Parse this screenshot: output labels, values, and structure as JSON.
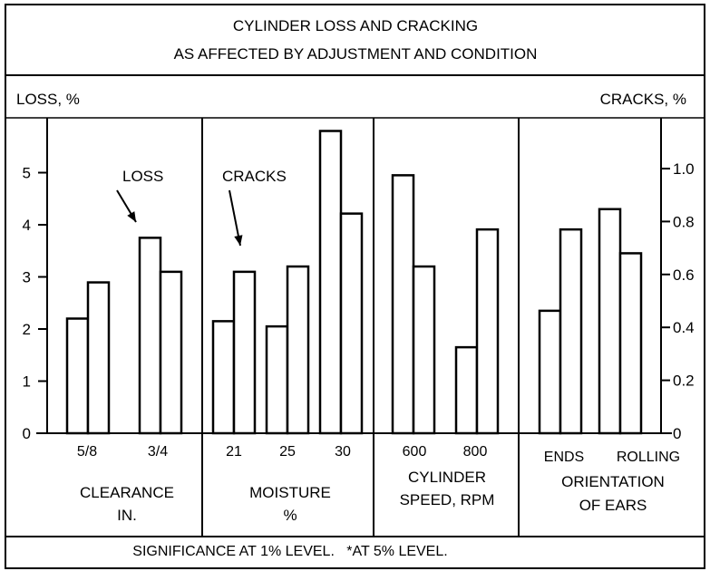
{
  "chart_data": {
    "type": "bar",
    "title": "CYLINDER LOSS AND CRACKING",
    "subtitle": "AS AFFECTED BY ADJUSTMENT AND CONDITION",
    "ylabel_left": "LOSS, %",
    "ylabel_right": "CRACKS, %",
    "ylim_left": [
      0,
      5.9
    ],
    "ylim_right": [
      0,
      1.19
    ],
    "yticks_left": [
      "0",
      "1",
      "2",
      "3",
      "4",
      "5"
    ],
    "yticks_right": [
      "0",
      "0.2",
      "0.4",
      "0.6",
      "0.8",
      "1.0"
    ],
    "grid": false,
    "annotations": {
      "loss": "LOSS",
      "cracks": "CRACKS"
    },
    "footnote": "SIGNIFICANCE AT 1% LEVEL.   *AT 5% LEVEL.",
    "groups": [
      {
        "label": [
          "CLEARANCE",
          "IN."
        ],
        "categories": [
          "5/8",
          "3/4"
        ],
        "loss": [
          2.2,
          3.75
        ],
        "cracks": [
          0.57,
          0.61
        ]
      },
      {
        "label": [
          "MOISTURE",
          "%"
        ],
        "categories": [
          "21",
          "25",
          "30"
        ],
        "loss": [
          2.15,
          2.05,
          5.8
        ],
        "cracks": [
          0.61,
          0.63,
          0.83
        ]
      },
      {
        "label": [
          "CYLINDER",
          "SPEED, RPM"
        ],
        "categories": [
          "600",
          "800"
        ],
        "loss": [
          4.95,
          1.65
        ],
        "cracks": [
          0.63,
          0.77
        ]
      },
      {
        "label": [
          "ORIENTATION",
          "OF EARS"
        ],
        "categories": [
          "ENDS",
          "ROLLING"
        ],
        "loss": [
          2.35,
          4.3
        ],
        "cracks": [
          0.77,
          0.68
        ]
      }
    ],
    "series": [
      {
        "name": "LOSS",
        "axis": "left"
      },
      {
        "name": "CRACKS",
        "axis": "right"
      }
    ],
    "colors": {
      "ink": "#000000",
      "bar_fill": "#ffffff"
    }
  }
}
